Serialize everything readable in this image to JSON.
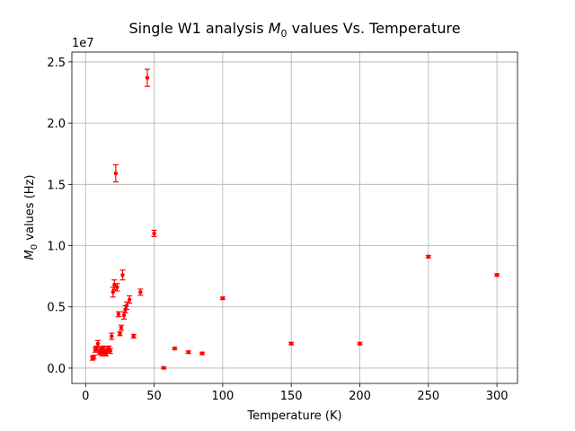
{
  "chart_data": {
    "type": "scatter",
    "title_prefix": "Single W1 analysis ",
    "title_math_base": "M",
    "title_math_sub": "0",
    "title_suffix": " values Vs. Temperature",
    "xlabel": "Temperature (K)",
    "ylabel_math_base": "M",
    "ylabel_math_sub": "0",
    "ylabel_suffix": " values (Hz)",
    "y_offset_label": "1e7",
    "xlim": [
      -10,
      315
    ],
    "ylim": [
      -1250000,
      25800000
    ],
    "xticks": [
      0,
      50,
      100,
      150,
      200,
      250,
      300
    ],
    "xtick_labels": [
      "0",
      "50",
      "100",
      "150",
      "200",
      "250",
      "300"
    ],
    "yticks": [
      0,
      5000000,
      10000000,
      15000000,
      20000000,
      25000000
    ],
    "ytick_labels": [
      "0.0",
      "0.5",
      "1.0",
      "1.5",
      "2.0",
      "2.5"
    ],
    "grid": true,
    "marker_color": "#ff0000",
    "series": [
      {
        "points": [
          {
            "x": 5,
            "y": 800000,
            "err": 150000
          },
          {
            "x": 6,
            "y": 900000,
            "err": 150000
          },
          {
            "x": 7,
            "y": 1500000,
            "err": 200000
          },
          {
            "x": 8,
            "y": 1600000,
            "err": 200000
          },
          {
            "x": 9,
            "y": 2000000,
            "err": 250000
          },
          {
            "x": 10,
            "y": 1300000,
            "err": 200000
          },
          {
            "x": 11,
            "y": 1500000,
            "err": 200000
          },
          {
            "x": 12,
            "y": 1200000,
            "err": 200000
          },
          {
            "x": 13,
            "y": 1600000,
            "err": 200000
          },
          {
            "x": 14,
            "y": 1300000,
            "err": 200000
          },
          {
            "x": 15,
            "y": 1200000,
            "err": 200000
          },
          {
            "x": 16,
            "y": 1500000,
            "err": 200000
          },
          {
            "x": 17,
            "y": 1600000,
            "err": 200000
          },
          {
            "x": 18,
            "y": 1400000,
            "err": 200000
          },
          {
            "x": 19,
            "y": 2600000,
            "err": 250000
          },
          {
            "x": 20,
            "y": 6200000,
            "err": 400000
          },
          {
            "x": 21,
            "y": 6800000,
            "err": 400000
          },
          {
            "x": 22,
            "y": 15900000,
            "err": 700000
          },
          {
            "x": 23,
            "y": 6600000,
            "err": 300000
          },
          {
            "x": 24,
            "y": 4400000,
            "err": 200000
          },
          {
            "x": 25,
            "y": 2800000,
            "err": 150000
          },
          {
            "x": 26,
            "y": 3300000,
            "err": 200000
          },
          {
            "x": 27,
            "y": 7600000,
            "err": 400000
          },
          {
            "x": 28,
            "y": 4300000,
            "err": 300000
          },
          {
            "x": 29,
            "y": 4800000,
            "err": 300000
          },
          {
            "x": 30,
            "y": 5100000,
            "err": 300000
          },
          {
            "x": 32,
            "y": 5600000,
            "err": 300000
          },
          {
            "x": 35,
            "y": 2600000,
            "err": 150000
          },
          {
            "x": 40,
            "y": 6200000,
            "err": 250000
          },
          {
            "x": 45,
            "y": 23700000,
            "err": 700000
          },
          {
            "x": 50,
            "y": 11000000,
            "err": 250000
          },
          {
            "x": 57,
            "y": 20000,
            "err": 80000
          },
          {
            "x": 65,
            "y": 1600000,
            "err": 100000
          },
          {
            "x": 75,
            "y": 1300000,
            "err": 100000
          },
          {
            "x": 85,
            "y": 1200000,
            "err": 100000
          },
          {
            "x": 100,
            "y": 5700000,
            "err": 100000
          },
          {
            "x": 150,
            "y": 2000000,
            "err": 100000
          },
          {
            "x": 200,
            "y": 2000000,
            "err": 100000
          },
          {
            "x": 250,
            "y": 9100000,
            "err": 100000
          },
          {
            "x": 300,
            "y": 7600000,
            "err": 100000
          }
        ]
      }
    ]
  }
}
